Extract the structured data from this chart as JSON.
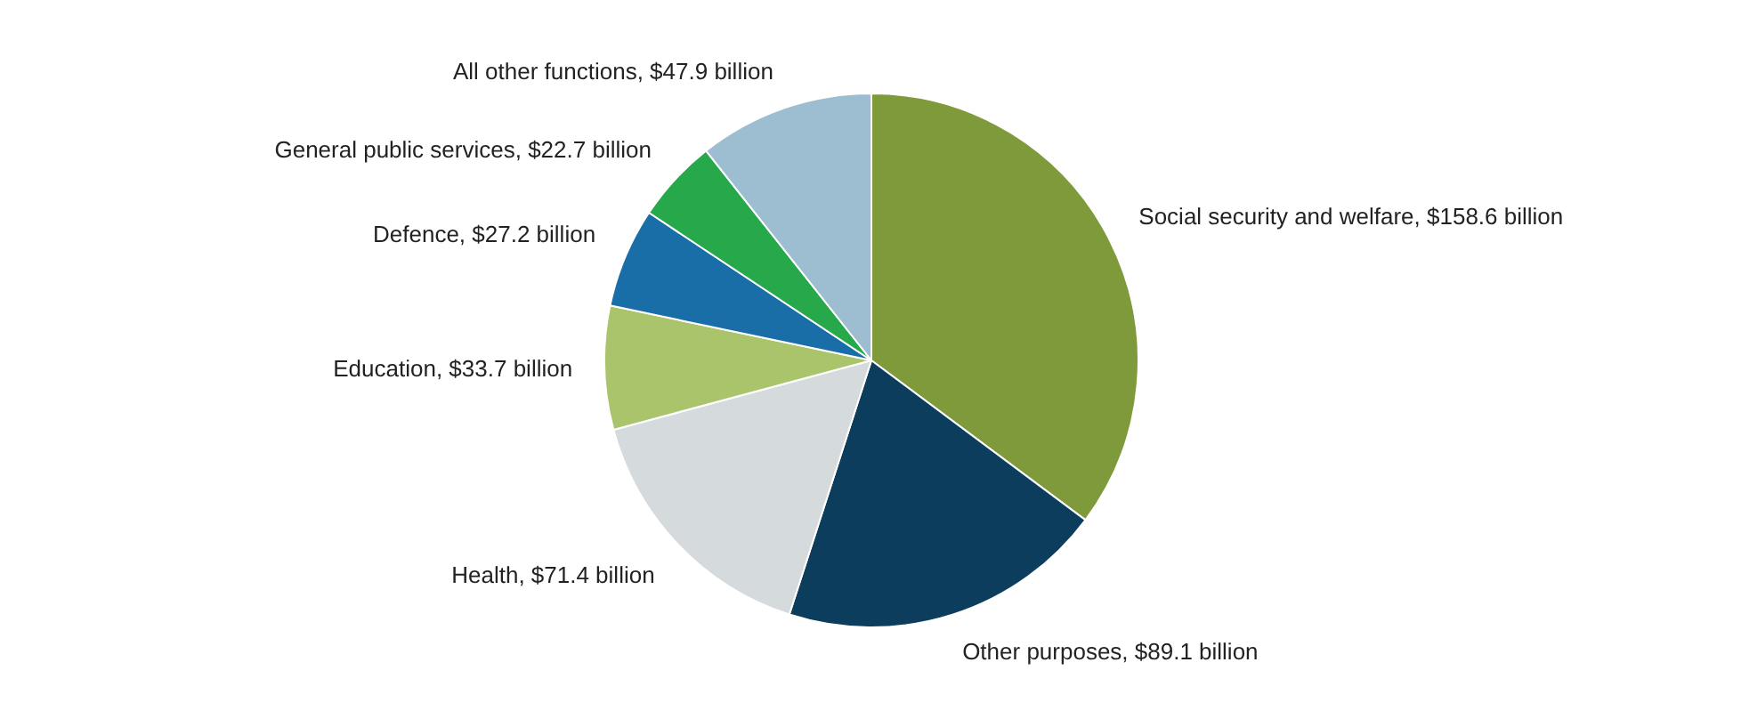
{
  "chart_data": {
    "type": "pie",
    "categories": [
      "Social security and welfare",
      "Other purposes",
      "Health",
      "Education",
      "Defence",
      "General public services",
      "All other functions"
    ],
    "values": [
      158.6,
      89.1,
      71.4,
      33.7,
      27.2,
      22.7,
      47.9
    ],
    "value_labels": [
      "$158.6 billion",
      "$89.1 billion",
      "$71.4 billion",
      "$33.7 billion",
      "$27.2 billion",
      "$22.7 billion",
      "$47.9 billion"
    ],
    "colors": [
      "#7f9a3a",
      "#0d3d5c",
      "#d5dadc",
      "#a9c46a",
      "#1a6ea8",
      "#27a84a",
      "#9dbdd1"
    ],
    "legend": false
  }
}
